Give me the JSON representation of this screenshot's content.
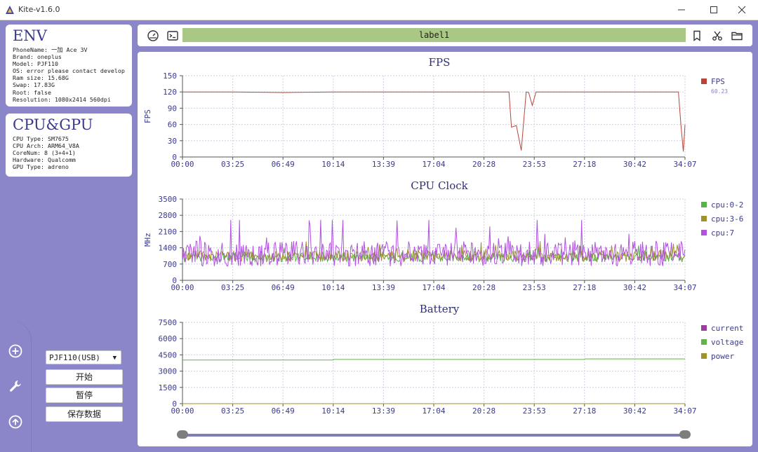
{
  "window": {
    "title": "Kite-v1.6.0",
    "controls": [
      "minimize",
      "maximize",
      "close"
    ]
  },
  "env": {
    "heading": "ENV",
    "lines": [
      "PhoneName: 一加 Ace 3V",
      "Brand: oneplus",
      "Model: PJF110",
      "OS: error please contact develope",
      "Ram size: 15.68G",
      "Swap: 17.83G",
      "Root: false",
      "Resolution: 1080x2414 560dpi"
    ]
  },
  "cpugpu": {
    "heading": "CPU&GPU",
    "lines": [
      "CPU Type: SM7675",
      "CPU Arch: ARM64_V8A",
      "CoreNum: 8 (3+4+1)",
      "Hardware: Qualcomm",
      "GPU Type: adreno"
    ]
  },
  "controls": {
    "device": "PJF110(USB)",
    "start": "开始",
    "pause": "暂停",
    "save": "保存数据"
  },
  "toolbar": {
    "label": "label1"
  },
  "colors": {
    "background": "#8b85c9",
    "fps_line": "#b8453a",
    "cpu02": "#58b24a",
    "cpu36": "#a0912a",
    "cpu7": "#b152e0",
    "current": "#9b3f9e",
    "voltage": "#66b24a",
    "power": "#a0912a",
    "label_bar": "#a9c785"
  },
  "icons": {
    "rail": [
      "plus-circle-icon",
      "wrench-icon",
      "upload-icon"
    ],
    "toolbar_left": [
      "dashboard-icon",
      "terminal-icon"
    ],
    "toolbar_right": [
      "bookmark-icon",
      "scissors-icon",
      "folder-icon"
    ]
  },
  "chart_data": [
    {
      "type": "line",
      "title": "FPS",
      "ylabel": "FPS",
      "x_ticks": [
        "00:00",
        "03:25",
        "06:49",
        "10:14",
        "13:39",
        "17:04",
        "20:28",
        "23:53",
        "27:18",
        "30:42",
        "34:07"
      ],
      "y_ticks": [
        0,
        30,
        60,
        90,
        120,
        150
      ],
      "ylim": [
        0,
        150
      ],
      "grid": true,
      "legend_position": "right",
      "series": [
        {
          "name": "FPS",
          "value_label": "60.23",
          "x": [
            "00:00",
            "03:25",
            "06:49",
            "10:14",
            "13:39",
            "17:04",
            "20:28",
            "22:10",
            "22:20",
            "22:40",
            "23:00",
            "23:20",
            "23:30",
            "23:45",
            "24:00",
            "24:10",
            "27:18",
            "30:42",
            "33:40",
            "33:50",
            "34:00",
            "34:07"
          ],
          "values": [
            120,
            120,
            119,
            120,
            120,
            120,
            120,
            120,
            55,
            58,
            12,
            120,
            119,
            95,
            120,
            120,
            120,
            120,
            120,
            60,
            10,
            60
          ]
        }
      ]
    },
    {
      "type": "line",
      "title": "CPU Clock",
      "ylabel": "MHz",
      "x_ticks": [
        "00:00",
        "03:25",
        "06:49",
        "10:14",
        "13:39",
        "17:04",
        "20:28",
        "23:53",
        "27:18",
        "30:42",
        "34:07"
      ],
      "y_ticks": [
        0,
        700,
        1400,
        2100,
        2800,
        3500
      ],
      "ylim": [
        0,
        3500
      ],
      "grid": true,
      "legend_position": "right",
      "series": [
        {
          "name": "cpu:0-2",
          "typical_range": [
            800,
            1500
          ]
        },
        {
          "name": "cpu:3-6",
          "typical_range": [
            800,
            1700
          ]
        },
        {
          "name": "cpu:7",
          "typical_range": [
            600,
            2600
          ]
        }
      ]
    },
    {
      "type": "line",
      "title": "Battery",
      "x_ticks": [
        "00:00",
        "03:25",
        "06:49",
        "10:14",
        "13:39",
        "17:04",
        "20:28",
        "23:53",
        "27:18",
        "30:42",
        "34:07"
      ],
      "y_ticks": [
        0,
        1500,
        3000,
        4500,
        6000,
        7500
      ],
      "ylim": [
        0,
        7500
      ],
      "grid": true,
      "legend_position": "right",
      "series": [
        {
          "name": "current",
          "x": [
            "00:00",
            "34:07"
          ],
          "values": [
            0,
            0
          ]
        },
        {
          "name": "voltage",
          "x": [
            "00:00",
            "10:14",
            "10:15",
            "27:18",
            "27:19",
            "34:07"
          ],
          "values": [
            4020,
            4020,
            4080,
            4080,
            4130,
            4130
          ]
        },
        {
          "name": "power",
          "x": [
            "00:00",
            "34:07"
          ],
          "values": [
            0,
            0
          ]
        }
      ]
    }
  ]
}
